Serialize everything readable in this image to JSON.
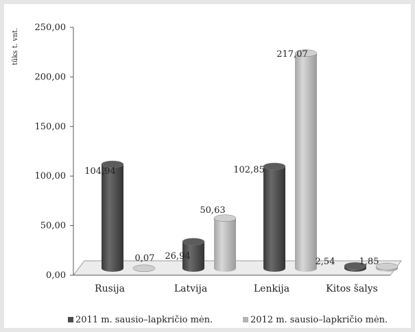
{
  "chart_data": {
    "type": "bar",
    "ylabel": "tūks t. vnt.",
    "ylim": [
      0,
      250
    ],
    "yticks": [
      "0,00",
      "50,00",
      "100,00",
      "150,00",
      "200,00",
      "250,00"
    ],
    "categories": [
      "Rusija",
      "Latvija",
      "Lenkija",
      "Kitos šalys"
    ],
    "series": [
      {
        "name": "2011 m. sausio–lapkričio mėn.",
        "values": [
          104.94,
          26.94,
          102.85,
          2.54
        ],
        "labels": [
          "104,94",
          "26,94",
          "102,85",
          "2,54"
        ],
        "color": "#4a4a4a"
      },
      {
        "name": "2012 m. sausio–lapkričio mėn.",
        "values": [
          0.07,
          50.63,
          217.07,
          1.85
        ],
        "labels": [
          "0,07",
          "50,63",
          "217,07",
          "1,85"
        ],
        "color": "#b3b3b3"
      }
    ],
    "legend_position": "bottom",
    "grid": false
  }
}
